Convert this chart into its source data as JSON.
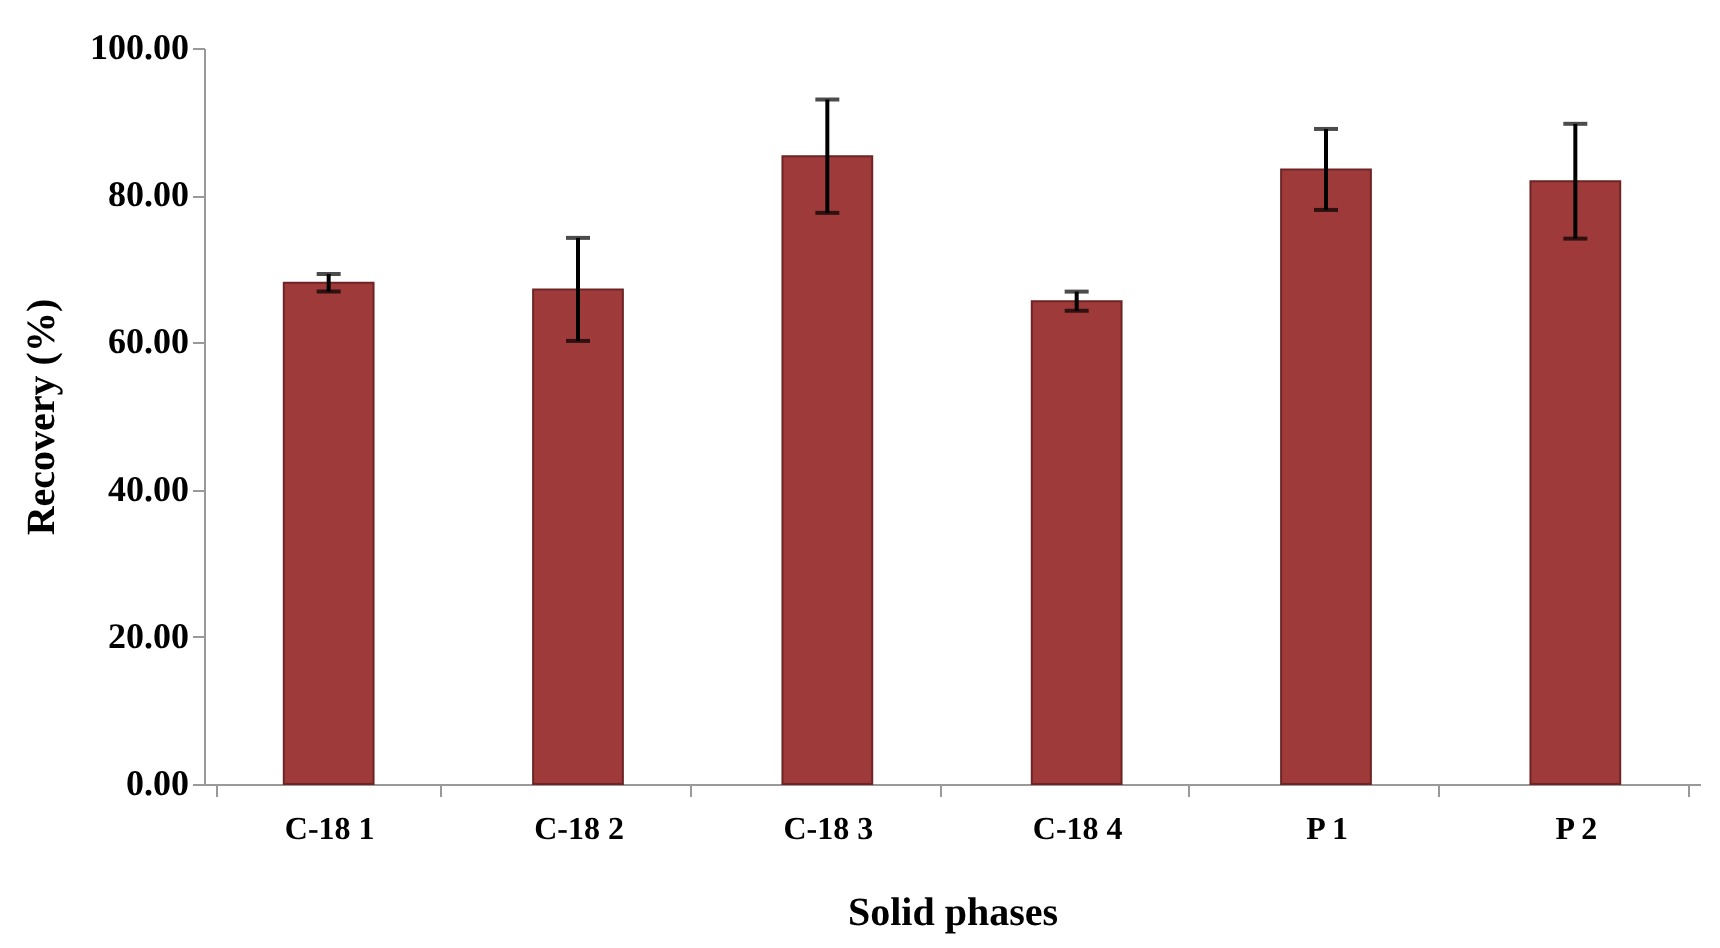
{
  "chart_data": {
    "type": "bar",
    "xlabel": "Solid phases",
    "ylabel": "Recovery (%)",
    "categories": [
      "C-18 1",
      "C-18 2",
      "C-18 3",
      "C-18 4",
      "P 1",
      "P 2"
    ],
    "values": [
      68.1,
      67.2,
      85.3,
      65.6,
      83.5,
      81.9
    ],
    "errors": [
      1.2,
      7,
      7.7,
      1.3,
      5.5,
      7.8
    ],
    "color": "#9e3b3a",
    "ylim": [
      0,
      100
    ],
    "yticks": [
      {
        "value": 0,
        "label": "0.00"
      },
      {
        "value": 20,
        "label": "20.00"
      },
      {
        "value": 40,
        "label": "40.00"
      },
      {
        "value": 60,
        "label": "60.00"
      },
      {
        "value": 80,
        "label": "80.00"
      },
      {
        "value": 100,
        "label": "100.00"
      }
    ],
    "grid": false
  }
}
